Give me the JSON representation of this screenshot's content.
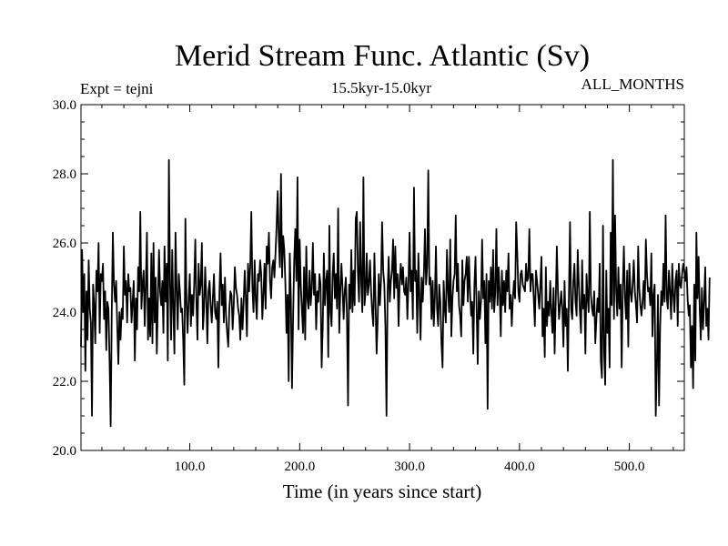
{
  "chart_data": {
    "type": "line",
    "title": "Merid Stream Func. Atlantic (Sv)",
    "subtitle": "15.5kyr-15.0kyr",
    "label_left": "Expt = tejni",
    "label_right": "ALL_MONTHS",
    "xlabel": "Time (in years since start)",
    "ylabel": "",
    "xlim": [
      1,
      550
    ],
    "ylim": [
      20.0,
      30.0
    ],
    "x_ticks": [
      100,
      200,
      300,
      400,
      500
    ],
    "x_tick_labels": [
      "100.0",
      "200.0",
      "300.0",
      "400.0",
      "500.0"
    ],
    "y_ticks": [
      20,
      22,
      24,
      26,
      28,
      30
    ],
    "y_tick_labels": [
      "20.0",
      "22.0",
      "24.0",
      "26.0",
      "28.0",
      "30.0"
    ],
    "x_start": 1,
    "x_step": 1,
    "series": [
      {
        "name": "Merid Stream Func. Atlantic",
        "values": [
          23.0,
          25.8,
          24.0,
          25.1,
          22.3,
          24.6,
          23.2,
          25.5,
          24.1,
          23.7,
          21.0,
          24.8,
          24.2,
          23.1,
          25.2,
          24.6,
          26.0,
          23.4,
          25.1,
          24.9,
          25.4,
          23.8,
          24.6,
          22.9,
          24.3,
          24.1,
          22.6,
          20.7,
          24.0,
          26.3,
          24.8,
          24.3,
          24.9,
          23.6,
          22.5,
          24.0,
          23.2,
          24.1,
          23.8,
          25.9,
          24.5,
          24.9,
          23.7,
          25.1,
          24.6,
          24.7,
          23.7,
          24.3,
          24.9,
          22.6,
          24.4,
          23.5,
          25.3,
          24.6,
          26.9,
          24.1,
          24.8,
          25.2,
          23.6,
          24.8,
          26.3,
          23.2,
          24.4,
          23.3,
          25.7,
          23.1,
          26.0,
          23.7,
          25.0,
          22.8,
          24.4,
          25.8,
          24.6,
          24.2,
          24.9,
          23.4,
          25.9,
          24.3,
          25.4,
          22.6,
          28.4,
          24.9,
          23.2,
          25.8,
          24.1,
          22.8,
          26.3,
          24.7,
          23.5,
          25.1,
          24.6,
          24.0,
          24.1,
          23.2,
          21.9,
          26.7,
          24.3,
          23.4,
          24.4,
          25.1,
          23.6,
          24.5,
          23.9,
          24.8,
          26.1,
          24.3,
          23.2,
          25.4,
          24.5,
          24.8,
          26.0,
          23.5,
          24.1,
          25.3,
          24.4,
          23.1,
          24.6,
          24.9,
          24.2,
          23.7,
          24.4,
          25.1,
          24.0,
          23.8,
          24.3,
          22.4,
          24.6,
          25.7,
          24.2,
          24.8,
          23.7,
          25.0,
          23.9,
          23.4,
          23.0,
          24.1,
          24.6,
          24.5,
          23.5,
          24.2,
          25.3,
          24.7,
          24.5,
          24.1,
          23.9,
          23.2,
          24.4,
          23.5,
          24.3,
          25.2,
          24.4,
          23.3,
          25.4,
          24.6,
          25.3,
          26.9,
          24.7,
          24.0,
          25.5,
          24.4,
          23.8,
          25.1,
          24.9,
          25.5,
          25.1,
          23.8,
          24.5,
          25.4,
          24.1,
          25.9,
          25.4,
          26.3,
          24.9,
          24.4,
          25.3,
          25.5,
          25.0,
          25.7,
          26.5,
          27.5,
          26.1,
          25.3,
          28.0,
          25.0,
          26.2,
          25.8,
          24.8,
          23.4,
          24.5,
          22.0,
          25.7,
          24.4,
          21.8,
          23.8,
          25.5,
          26.4,
          24.9,
          27.9,
          23.5,
          26.1,
          24.8,
          24.1,
          23.4,
          25.3,
          23.2,
          25.9,
          24.4,
          24.1,
          25.2,
          24.2,
          24.7,
          26.0,
          24.5,
          25.1,
          23.5,
          24.6,
          24.3,
          25.1,
          24.8,
          22.4,
          23.6,
          25.7,
          24.2,
          24.9,
          25.2,
          22.7,
          26.5,
          24.0,
          23.6,
          25.1,
          25.7,
          24.4,
          25.1,
          24.1,
          27.0,
          23.4,
          24.6,
          25.4,
          24.7,
          23.8,
          24.6,
          25.0,
          23.9,
          21.3,
          24.8,
          24.1,
          25.8,
          24.0,
          25.2,
          24.2,
          26.7,
          26.9,
          25.1,
          24.3,
          26.6,
          24.9,
          24.0,
          27.9,
          24.2,
          24.6,
          25.7,
          24.5,
          24.8,
          25.5,
          24.6,
          24.0,
          23.6,
          25.7,
          24.3,
          22.8,
          23.8,
          25.1,
          24.2,
          24.9,
          26.6,
          25.2,
          24.8,
          23.6,
          21.0,
          24.6,
          25.6,
          24.3,
          24.9,
          25.2,
          26.1,
          24.4,
          25.9,
          24.7,
          25.1,
          23.6,
          24.9,
          25.4,
          24.8,
          25.3,
          24.6,
          24.5,
          25.0,
          23.8,
          24.9,
          26.3,
          24.6,
          25.2,
          23.8,
          27.6,
          24.9,
          25.2,
          23.4,
          25.7,
          24.5,
          23.2,
          25.0,
          24.3,
          25.1,
          26.4,
          24.8,
          25.3,
          28.1,
          24.8,
          25.0,
          23.8,
          24.9,
          23.6,
          24.4,
          25.9,
          24.1,
          23.6,
          24.8,
          24.3,
          23.1,
          22.4,
          24.9,
          24.1,
          23.7,
          25.8,
          24.6,
          24.0,
          26.1,
          23.3,
          24.4,
          24.9,
          25.1,
          26.8,
          24.6,
          25.4,
          24.2,
          23.9,
          23.3,
          25.5,
          24.2,
          24.9,
          25.1,
          25.6,
          24.3,
          25.6,
          24.6,
          23.9,
          24.3,
          22.8,
          24.8,
          25.6,
          24.1,
          22.5,
          24.6,
          23.8,
          24.3,
          26.1,
          24.4,
          24.9,
          23.1,
          25.1,
          21.2,
          24.9,
          24.3,
          25.3,
          24.1,
          25.8,
          24.0,
          24.6,
          26.4,
          24.2,
          25.3,
          24.6,
          23.3,
          25.2,
          24.2,
          24.9,
          24.0,
          25.2,
          24.6,
          25.7,
          24.1,
          24.5,
          23.6,
          24.4,
          24.9,
          24.4,
          26.6,
          25.7,
          24.6,
          24.3,
          25.1,
          25.2,
          24.8,
          24.7,
          24.6,
          25.4,
          24.9,
          25.0,
          26.4,
          24.6,
          25.1,
          25.1,
          24.4,
          23.6,
          25.2,
          24.9,
          24.5,
          24.1,
          24.8,
          25.6,
          23.3,
          24.1,
          22.7,
          25.3,
          23.6,
          24.3,
          23.9,
          24.9,
          24.0,
          23.4,
          24.7,
          22.8,
          24.3,
          25.9,
          24.6,
          23.8,
          24.2,
          24.6,
          24.1,
          23.0,
          24.9,
          23.6,
          24.1,
          22.3,
          24.5,
          26.6,
          24.1,
          23.8,
          24.9,
          25.4,
          24.3,
          23.9,
          25.8,
          24.8,
          24.0,
          23.4,
          25.5,
          24.1,
          24.5,
          22.8,
          25.1,
          24.4,
          24.0,
          26.9,
          24.5,
          24.1,
          23.9,
          24.6,
          23.1,
          23.8,
          24.4,
          24.0,
          25.4,
          22.6,
          22.1,
          26.5,
          22.9,
          21.9,
          25.2,
          23.4,
          24.1,
          22.4,
          26.3,
          24.2,
          28.4,
          23.8,
          26.8,
          24.6,
          23.9,
          25.3,
          24.1,
          24.8,
          22.4,
          24.7,
          25.9,
          24.4,
          23.8,
          25.2,
          23.0,
          25.4,
          24.6,
          24.3,
          24.8,
          25.5,
          24.6,
          24.2,
          23.7,
          25.9,
          24.7,
          24.2,
          23.9,
          24.3,
          24.9,
          24.1,
          26.1,
          25.1,
          24.6,
          24.7,
          24.2,
          25.7,
          23.3,
          24.5,
          24.8,
          21.0,
          22.4,
          24.5,
          21.3,
          23.6,
          24.6,
          24.2,
          25.4,
          24.3,
          26.8,
          24.4,
          24.1,
          25.2,
          24.6,
          23.8,
          25.4,
          24.5,
          24.0,
          24.9,
          25.2,
          23.6,
          25.4,
          24.8,
          24.7,
          25.1,
          25.4,
          25.2,
          24.9,
          25.3,
          24.4,
          23.9,
          24.2,
          22.4,
          23.6,
          21.8,
          24.8,
          22.6,
          26.3,
          24.4,
          25.6,
          24.1,
          23.2,
          24.7,
          23.5,
          24.3,
          25.3,
          23.6,
          24.1,
          23.2,
          25.0
        ]
      }
    ]
  }
}
